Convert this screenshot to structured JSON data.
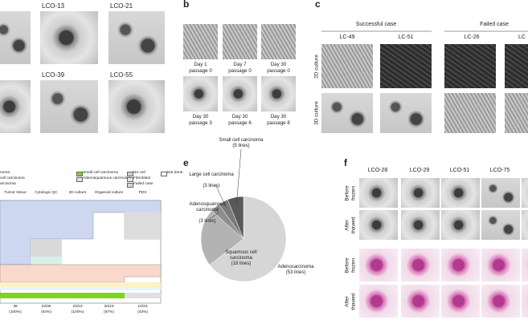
{
  "panel_labels": [
    "b",
    "c",
    "e",
    "f"
  ],
  "panel_a": {
    "labels": [
      "LCO-13",
      "LCO-21",
      "LCO-39",
      "LCO-55"
    ]
  },
  "panel_b": {
    "captions": [
      [
        "Day 1",
        "passage 0"
      ],
      [
        "Day 7",
        "passage 0"
      ],
      [
        "Day 30",
        "passage 0"
      ],
      [
        "Day 30",
        "passage 3"
      ],
      [
        "Day 30",
        "passage 6"
      ],
      [
        "Day 30",
        "passage 8"
      ]
    ]
  },
  "panel_c": {
    "groups": [
      "Successful case",
      "Failed case"
    ],
    "columns": [
      "LC-49",
      "LC-51",
      "LC-26",
      "LC"
    ],
    "rows": [
      "2D culture",
      "3D culture"
    ]
  },
  "panel_d": {
    "legend": [
      {
        "label": "noma"
      },
      {
        "label": "cell carcinoma"
      },
      {
        "label": "arcinoma"
      },
      {
        "label": "Small cell carcinoma",
        "color": "#7ed321"
      },
      {
        "label": "Adenosquamous carcinoma",
        "color": "#bff0ee"
      },
      {
        "label": "No cell",
        "color": "#cfcfcf"
      },
      {
        "label": "Fibroblast",
        "color": "#e6e6e6"
      },
      {
        "label": "Failed case",
        "color": "#d9d9d9"
      },
      {
        "label": "Not done",
        "color": "#ffffff"
      }
    ],
    "columns": [
      "Tumor tissue",
      "Cytologic QC",
      "2D culture",
      "Organoid culture",
      "PDX"
    ],
    "counts": [
      [
        "36",
        "(100%)"
      ],
      [
        "23/36",
        "(64%)"
      ],
      [
        "23/23",
        "(100%)"
      ],
      [
        "20/23",
        "(87%)"
      ],
      [
        "10/23",
        "(43%)"
      ]
    ]
  },
  "chart_data": {
    "type": "pie",
    "categories": [
      "Adenocarcinoma",
      "Squamous cell carcinoma",
      "Adenosquamous carcinoma",
      "Large cell carcinoma",
      "Small cell carcinoma"
    ],
    "values": [
      53,
      18,
      3,
      3,
      5
    ],
    "value_labels": [
      "(53 lines)",
      "(18 lines)",
      "(3 lines)",
      "(3 lines)",
      "(5 lines)"
    ],
    "colors": [
      "#d6d6d6",
      "#b3b3b3",
      "#8e8e8e",
      "#7a7a7a",
      "#595959"
    ]
  },
  "panel_f": {
    "columns": [
      "LCO-28",
      "LCO-29",
      "LCO-51",
      "LCO-75"
    ],
    "rows": [
      [
        "Before",
        "frozen"
      ],
      [
        "After",
        "thawed"
      ],
      [
        "Before",
        "frozen"
      ],
      [
        "After",
        "thawed"
      ]
    ]
  }
}
